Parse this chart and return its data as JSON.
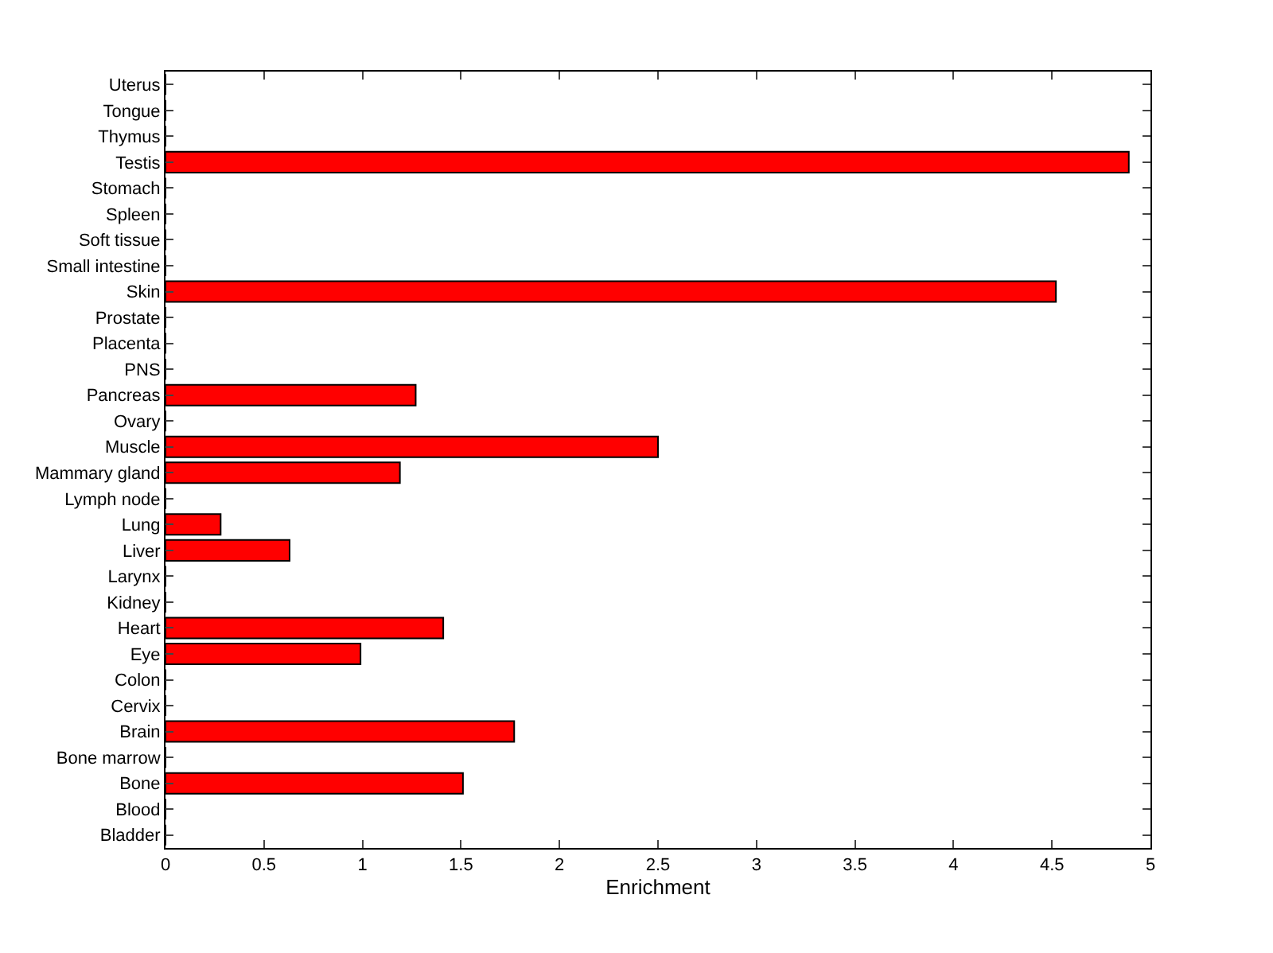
{
  "chart_data": {
    "type": "bar",
    "orientation": "horizontal",
    "xlabel": "Enrichment",
    "categories": [
      "Uterus",
      "Tongue",
      "Thymus",
      "Testis",
      "Stomach",
      "Spleen",
      "Soft tissue",
      "Small intestine",
      "Skin",
      "Prostate",
      "Placenta",
      "PNS",
      "Pancreas",
      "Ovary",
      "Muscle",
      "Mammary gland",
      "Lymph node",
      "Lung",
      "Liver",
      "Larynx",
      "Kidney",
      "Heart",
      "Eye",
      "Colon",
      "Cervix",
      "Brain",
      "Bone marrow",
      "Bone",
      "Blood",
      "Bladder"
    ],
    "values": [
      0,
      0,
      0,
      4.89,
      0,
      0,
      0,
      0,
      4.52,
      0,
      0,
      0,
      1.27,
      0,
      2.5,
      1.19,
      0,
      0.28,
      0.63,
      0,
      0,
      1.41,
      0.99,
      0,
      0,
      1.77,
      0,
      1.51,
      0,
      0
    ],
    "color": "#ff0000",
    "xlim": [
      0,
      5
    ],
    "xticks": [
      0,
      0.5,
      1,
      1.5,
      2,
      2.5,
      3,
      3.5,
      4,
      4.5,
      5
    ],
    "legend": false
  }
}
